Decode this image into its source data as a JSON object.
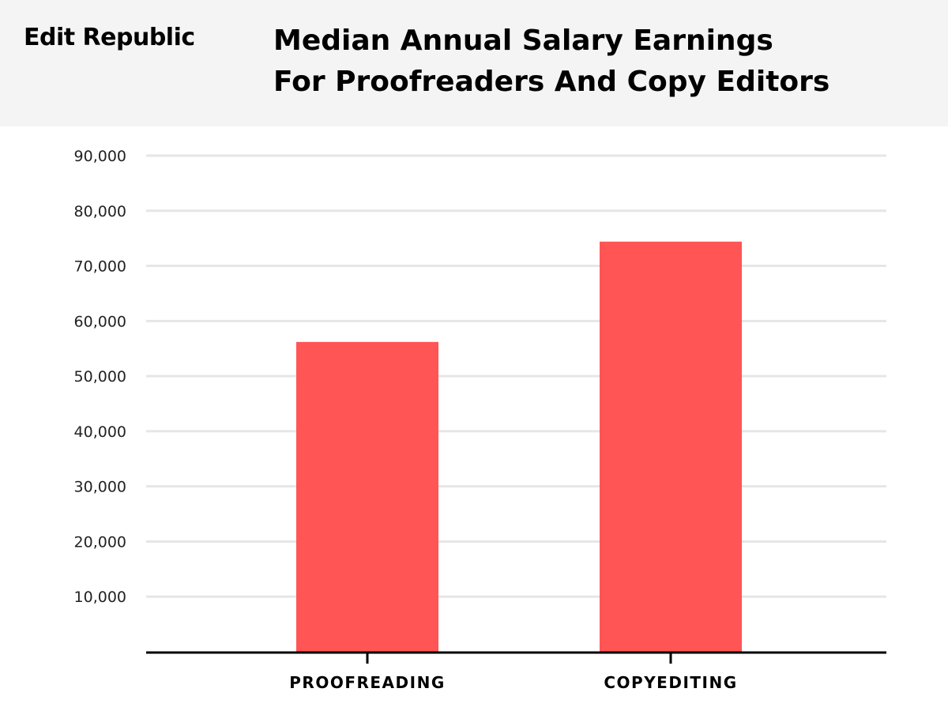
{
  "brand": "Edit Republic",
  "title_lines": [
    "Median Annual Salary Earnings",
    "For Proofreaders And Copy Editors"
  ],
  "colors": {
    "bar": "#ff5555",
    "header_bg": "#f4f4f4",
    "grid": "#e6e6e6",
    "axis": "#000000"
  },
  "chart_data": {
    "type": "bar",
    "title": "Median Annual Salary Earnings For Proofreaders And Copy Editors",
    "categories": [
      "PROOFREADING",
      "COPYEDITING"
    ],
    "values": [
      56200,
      74400
    ],
    "xlabel": "",
    "ylabel": "",
    "ylim": [
      0,
      90000
    ],
    "yticks": [
      10000,
      20000,
      30000,
      40000,
      50000,
      60000,
      70000,
      80000,
      90000
    ],
    "ytick_labels": [
      "10,000",
      "20,000",
      "30,000",
      "40,000",
      "50,000",
      "60,000",
      "70,000",
      "80,000",
      "90,000"
    ],
    "grid": true,
    "legend": "none"
  }
}
